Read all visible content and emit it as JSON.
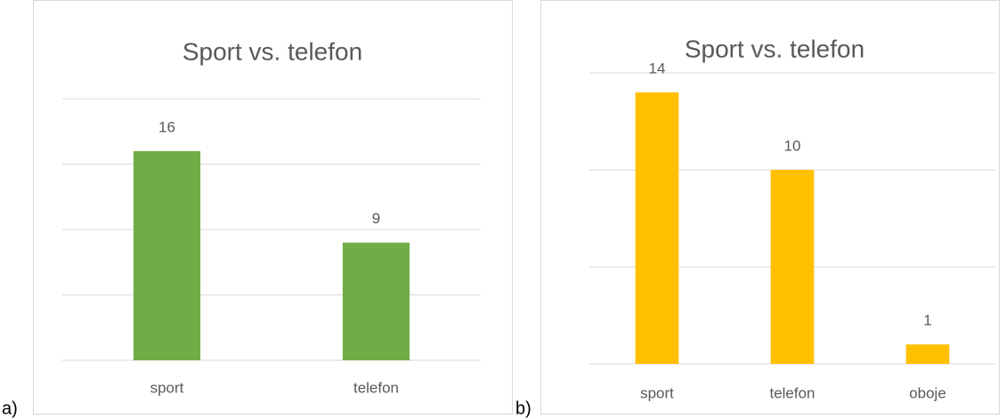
{
  "panel_labels": [
    "a)",
    "b)"
  ],
  "chart_data": [
    {
      "type": "bar",
      "title": "Sport vs. telefon",
      "categories": [
        "sport",
        "telefon"
      ],
      "values": [
        16,
        9
      ],
      "color": "#70ad47",
      "ylim": [
        0,
        20
      ],
      "yticks": [
        0,
        5,
        10,
        15,
        20
      ],
      "grid": true
    },
    {
      "type": "bar",
      "title": "Sport vs. telefon",
      "categories": [
        "sport",
        "telefon",
        "oboje"
      ],
      "values": [
        14,
        10,
        1
      ],
      "color": "#ffc000",
      "ylim": [
        0,
        15
      ],
      "yticks": [
        0,
        5,
        10,
        15
      ],
      "grid": true
    }
  ]
}
